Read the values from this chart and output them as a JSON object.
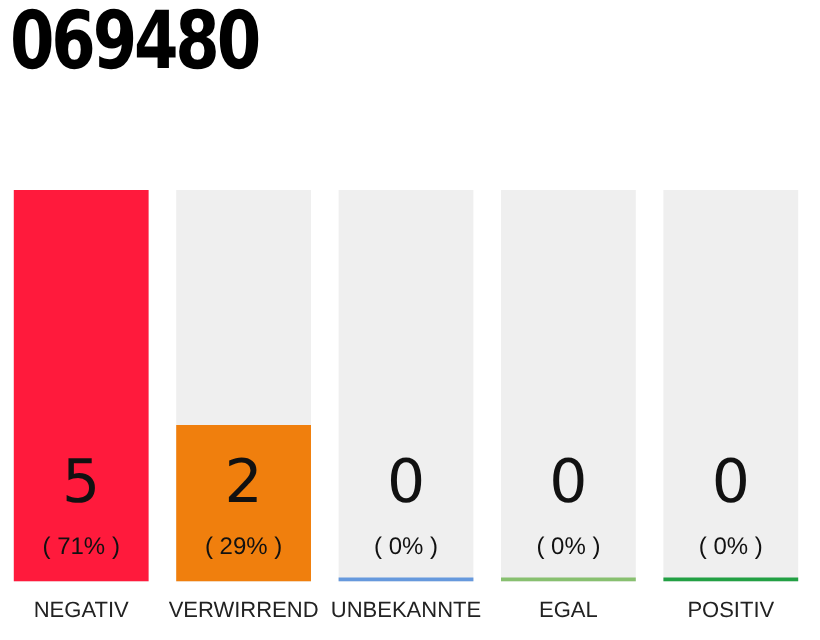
{
  "chart_data": {
    "type": "bar",
    "title": "069480",
    "categories": [
      "NEGATIV",
      "VERWIRREND",
      "UNBEKANNTE",
      "EGAL",
      "POSITIV"
    ],
    "values": [
      5,
      2,
      0,
      0,
      0
    ],
    "colors": [
      "#ff1a3c",
      "#f07f0d",
      "#6699dd",
      "#88c070",
      "#22a044"
    ],
    "annotations": [
      "( 71% )",
      "( 29% )",
      "( 0% )",
      "( 0% )",
      "( 0% )"
    ],
    "ylim": [
      0,
      5
    ],
    "tick_labels": "x",
    "grid": false,
    "legend": false,
    "data_labels": true
  }
}
